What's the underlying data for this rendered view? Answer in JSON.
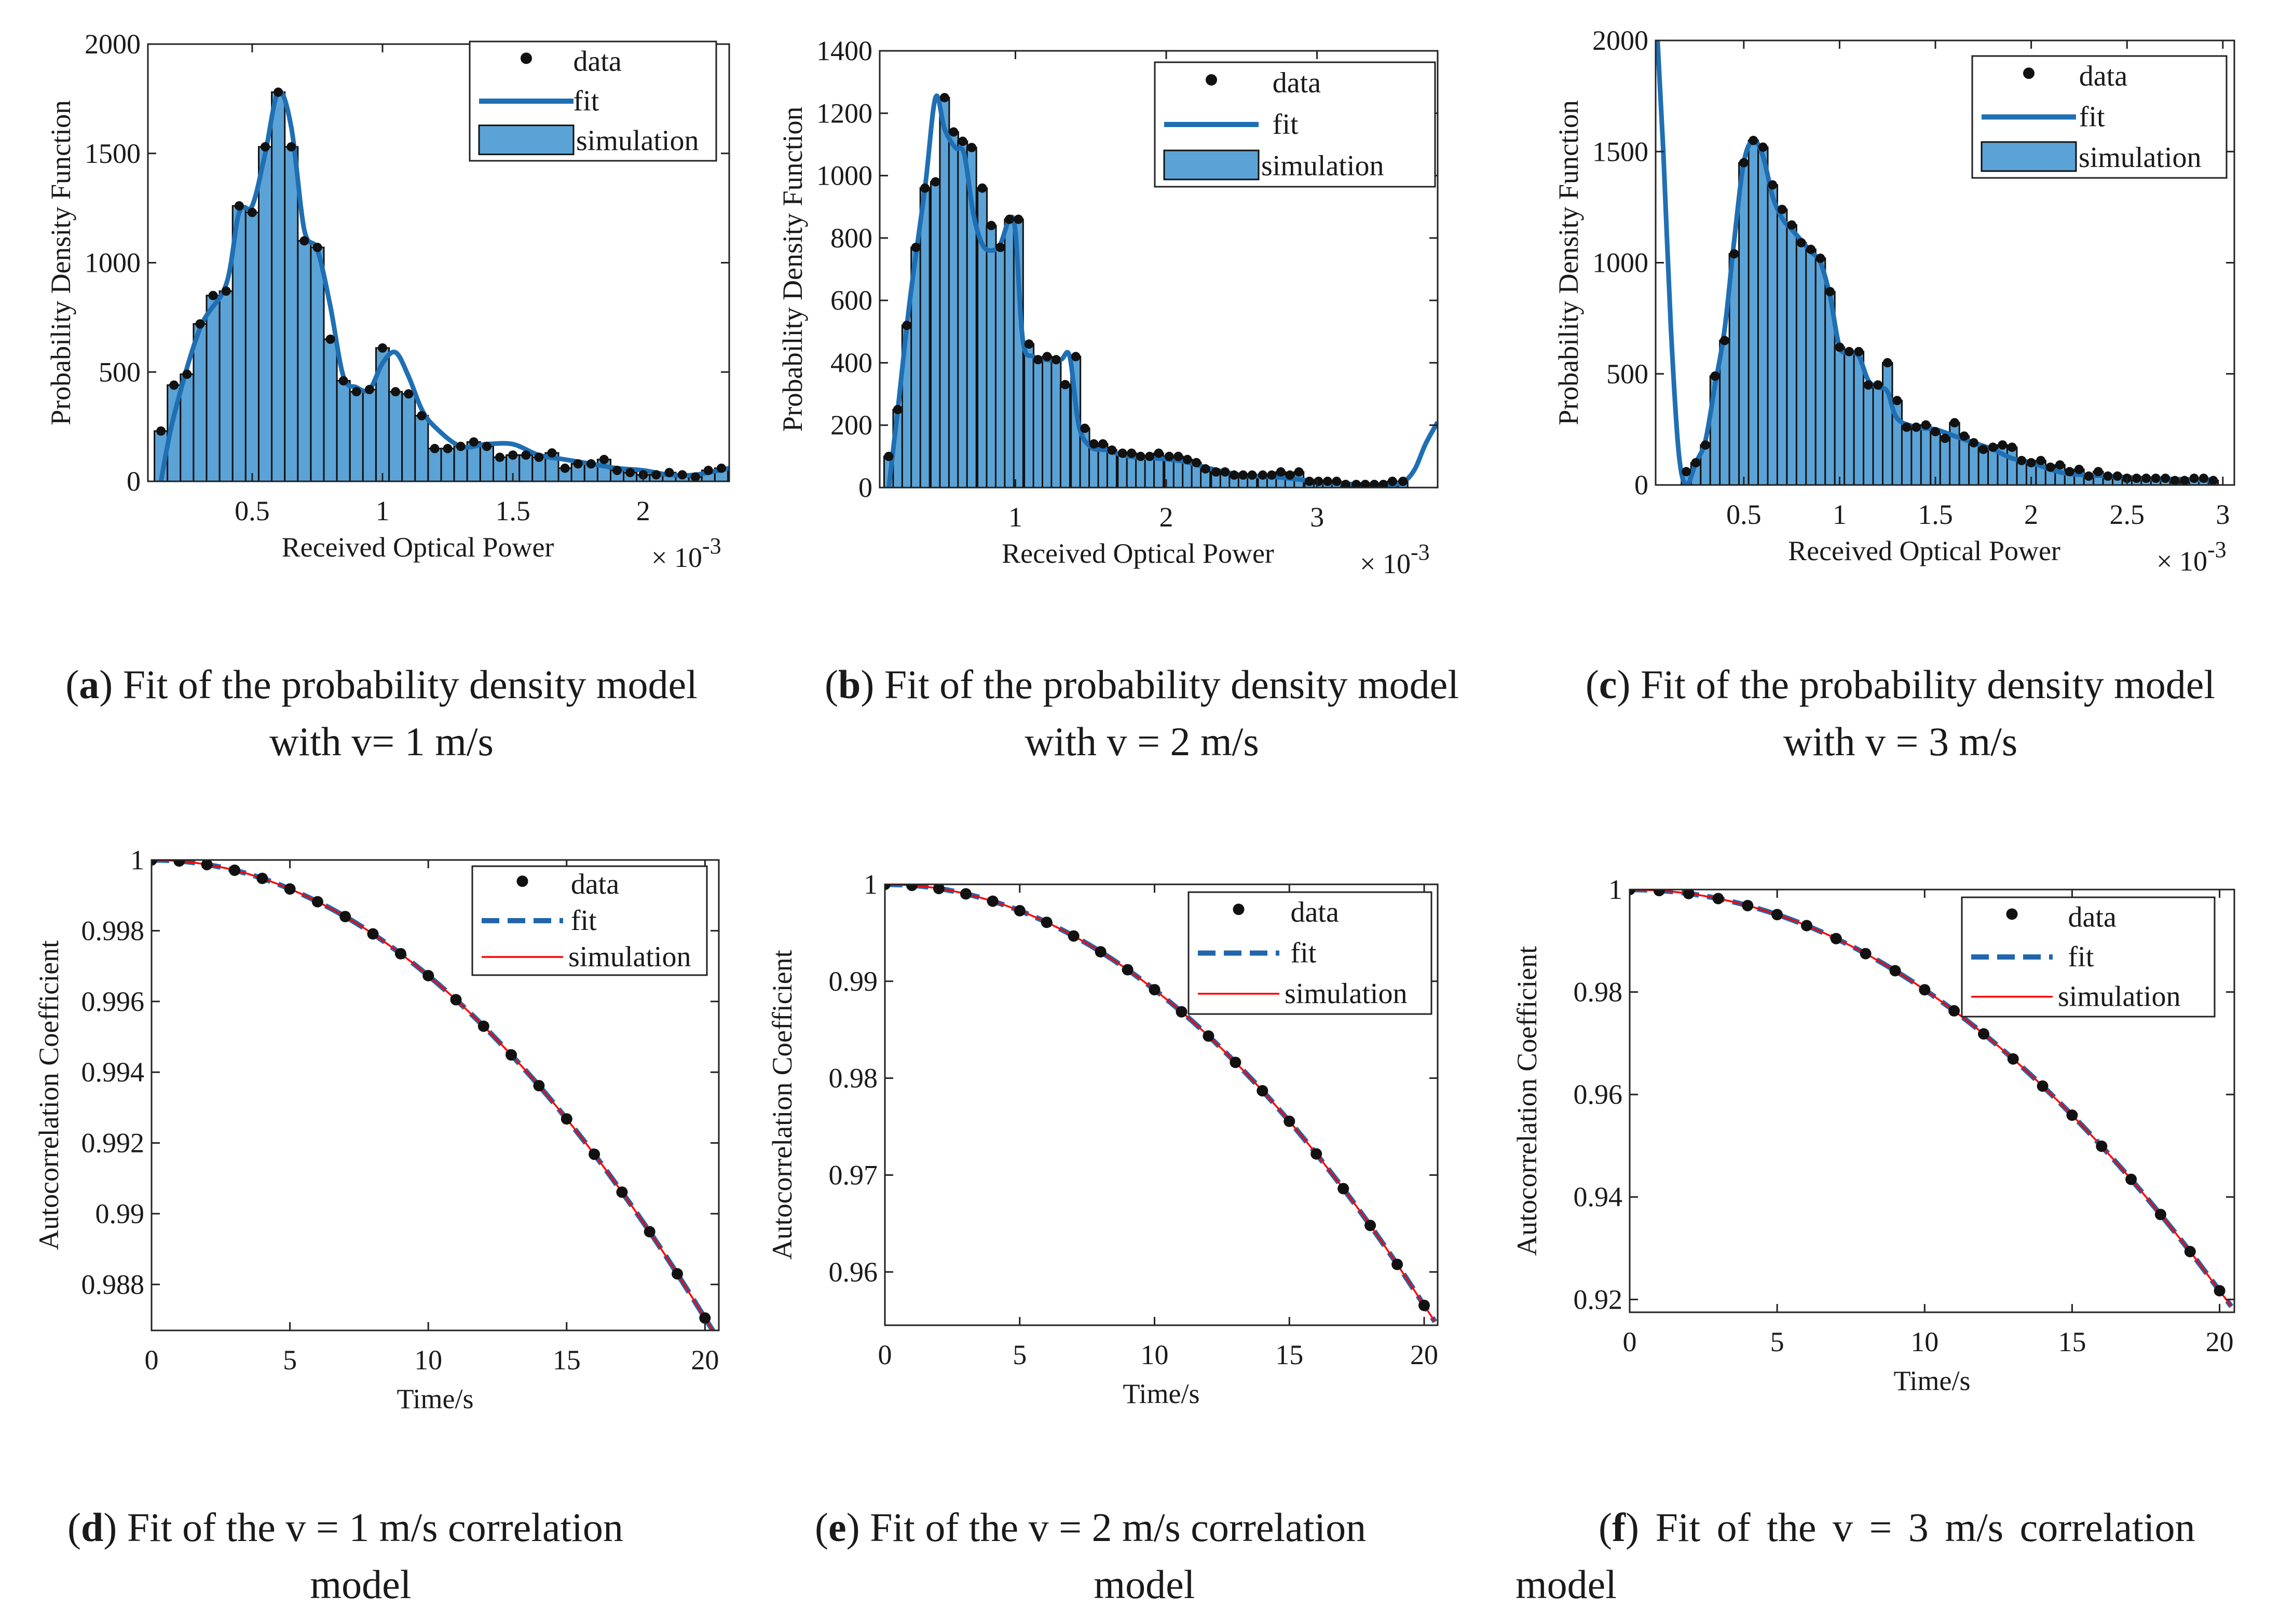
{
  "chart_data": [
    {
      "id": "a",
      "type": "bar",
      "kind": "pdf",
      "xlabel": "Received Optical Power",
      "ylabel": "Probability Density Function",
      "xscale_label": "× 10",
      "xscale_exp": "-3",
      "xlim": [
        0.1,
        2.33
      ],
      "ylim": [
        0,
        2000
      ],
      "xticks": [
        0.5,
        1,
        1.5,
        2
      ],
      "xtick_labels": [
        "0.5",
        "1",
        "1.5",
        "2"
      ],
      "yticks": [
        0,
        500,
        1000,
        1500,
        2000
      ],
      "ytick_labels": [
        "0",
        "500",
        "1000",
        "1500",
        "2000"
      ],
      "legend": [
        "data",
        "fit",
        "simulation"
      ],
      "legend_position": "top-right",
      "bin_width": 0.05,
      "x": [
        0.15,
        0.2,
        0.25,
        0.3,
        0.35,
        0.4,
        0.45,
        0.5,
        0.55,
        0.6,
        0.65,
        0.7,
        0.75,
        0.8,
        0.85,
        0.9,
        0.95,
        1.0,
        1.05,
        1.1,
        1.15,
        1.2,
        1.25,
        1.3,
        1.35,
        1.4,
        1.45,
        1.5,
        1.55,
        1.6,
        1.65,
        1.7,
        1.75,
        1.8,
        1.85,
        1.9,
        1.95,
        2.0,
        2.05,
        2.1,
        2.15,
        2.2,
        2.25,
        2.3
      ],
      "values": [
        230,
        440,
        490,
        720,
        850,
        870,
        1260,
        1230,
        1530,
        1780,
        1530,
        1100,
        1070,
        650,
        460,
        410,
        420,
        610,
        410,
        400,
        300,
        150,
        150,
        160,
        180,
        160,
        110,
        120,
        120,
        110,
        130,
        60,
        80,
        80,
        100,
        50,
        40,
        30,
        30,
        40,
        30,
        20,
        50,
        60
      ],
      "fit_x": [
        0.15,
        0.2,
        0.3,
        0.4,
        0.45,
        0.5,
        0.55,
        0.6,
        0.65,
        0.7,
        0.75,
        0.8,
        0.85,
        0.9,
        0.95,
        1.0,
        1.05,
        1.1,
        1.15,
        1.2,
        1.3,
        1.4,
        1.5,
        1.6,
        1.7,
        1.8,
        1.9,
        2.0,
        2.1,
        2.2,
        2.33
      ],
      "fit_y": [
        0,
        300,
        700,
        900,
        1230,
        1260,
        1500,
        1780,
        1620,
        1150,
        1060,
        800,
        480,
        430,
        420,
        540,
        590,
        480,
        330,
        250,
        160,
        170,
        170,
        120,
        100,
        80,
        60,
        50,
        30,
        30,
        60
      ]
    },
    {
      "id": "b",
      "type": "bar",
      "kind": "pdf",
      "xlabel": "Received Optical Power",
      "ylabel": "Probability Density Function",
      "xscale_label": "× 10",
      "xscale_exp": "-3",
      "xlim": [
        0.1,
        3.8
      ],
      "ylim": [
        0,
        1400
      ],
      "xticks": [
        1,
        2,
        3
      ],
      "xtick_labels": [
        "1",
        "2",
        "3"
      ],
      "yticks": [
        0,
        200,
        400,
        600,
        800,
        1000,
        1200,
        1400
      ],
      "ytick_labels": [
        "0",
        "200",
        "400",
        "600",
        "800",
        "1000",
        "1200",
        "1400"
      ],
      "legend": [
        "data",
        "fit",
        "simulation"
      ],
      "legend_position": "top-right",
      "bin_width": 0.062,
      "x": [
        0.16,
        0.22,
        0.28,
        0.34,
        0.4,
        0.47,
        0.53,
        0.59,
        0.65,
        0.71,
        0.78,
        0.84,
        0.9,
        0.96,
        1.02,
        1.09,
        1.15,
        1.21,
        1.27,
        1.33,
        1.4,
        1.46,
        1.52,
        1.58,
        1.64,
        1.71,
        1.77,
        1.83,
        1.89,
        1.95,
        2.02,
        2.08,
        2.14,
        2.2,
        2.26,
        2.33,
        2.39,
        2.45,
        2.51,
        2.57,
        2.64,
        2.7,
        2.76,
        2.82,
        2.88,
        2.95,
        3.01,
        3.07,
        3.13,
        3.19,
        3.26,
        3.32,
        3.38,
        3.44,
        3.5,
        3.57
      ],
      "values": [
        100,
        250,
        520,
        770,
        960,
        980,
        1250,
        1140,
        1110,
        1090,
        960,
        840,
        770,
        860,
        860,
        460,
        410,
        420,
        410,
        330,
        420,
        190,
        140,
        140,
        120,
        110,
        110,
        100,
        100,
        110,
        100,
        100,
        90,
        80,
        60,
        50,
        50,
        40,
        40,
        40,
        40,
        40,
        50,
        40,
        50,
        20,
        20,
        20,
        20,
        10,
        10,
        10,
        10,
        10,
        20,
        20
      ],
      "fit_x": [
        0.16,
        0.22,
        0.3,
        0.4,
        0.47,
        0.53,
        0.6,
        0.66,
        0.72,
        0.78,
        0.84,
        0.9,
        0.96,
        1.0,
        1.05,
        1.12,
        1.2,
        1.3,
        1.36,
        1.42,
        1.5,
        1.6,
        1.75,
        1.9,
        2.1,
        2.3,
        2.5,
        2.7,
        2.9,
        3.1,
        3.3,
        3.5,
        3.58,
        3.65,
        3.72,
        3.8
      ],
      "fit_y": [
        0,
        250,
        600,
        960,
        1250,
        1150,
        1090,
        1070,
        880,
        780,
        760,
        780,
        860,
        820,
        470,
        420,
        410,
        410,
        420,
        200,
        130,
        120,
        100,
        95,
        85,
        60,
        40,
        35,
        25,
        15,
        10,
        10,
        20,
        60,
        140,
        210
      ]
    },
    {
      "id": "c",
      "type": "bar",
      "kind": "pdf",
      "xlabel": "Received Optical Power",
      "ylabel": "Probability Density Function",
      "xscale_label": "× 10",
      "xscale_exp": "-3",
      "xlim": [
        0.04,
        3.06
      ],
      "ylim": [
        0,
        2000
      ],
      "xticks": [
        0.5,
        1,
        1.5,
        2,
        2.5,
        3
      ],
      "xtick_labels": [
        "0.5",
        "1",
        "1.5",
        "2",
        "2.5",
        "3"
      ],
      "yticks": [
        0,
        500,
        1000,
        1500,
        2000
      ],
      "ytick_labels": [
        "0",
        "500",
        "1000",
        "1500",
        "2000"
      ],
      "legend": [
        "data",
        "fit",
        "simulation"
      ],
      "legend_position": "top-right",
      "bin_width": 0.05,
      "x": [
        0.2,
        0.25,
        0.3,
        0.35,
        0.4,
        0.45,
        0.5,
        0.55,
        0.6,
        0.65,
        0.7,
        0.75,
        0.8,
        0.85,
        0.9,
        0.95,
        1.0,
        1.05,
        1.1,
        1.15,
        1.2,
        1.25,
        1.3,
        1.35,
        1.4,
        1.45,
        1.5,
        1.55,
        1.6,
        1.65,
        1.7,
        1.75,
        1.8,
        1.85,
        1.9,
        1.95,
        2.0,
        2.05,
        2.1,
        2.15,
        2.2,
        2.25,
        2.3,
        2.35,
        2.4,
        2.45,
        2.5,
        2.55,
        2.6,
        2.65,
        2.7,
        2.75,
        2.8,
        2.85,
        2.9,
        2.95
      ],
      "values": [
        60,
        100,
        180,
        490,
        650,
        1040,
        1450,
        1550,
        1520,
        1350,
        1240,
        1170,
        1090,
        1060,
        1020,
        870,
        620,
        600,
        600,
        450,
        450,
        550,
        380,
        260,
        260,
        270,
        240,
        210,
        280,
        220,
        190,
        160,
        170,
        180,
        170,
        110,
        100,
        110,
        80,
        90,
        60,
        70,
        40,
        60,
        40,
        40,
        30,
        30,
        30,
        30,
        30,
        20,
        20,
        30,
        30,
        20
      ],
      "fit_x": [
        0.05,
        0.08,
        0.12,
        0.16,
        0.2,
        0.25,
        0.3,
        0.35,
        0.4,
        0.45,
        0.5,
        0.55,
        0.6,
        0.65,
        0.7,
        0.75,
        0.8,
        0.85,
        0.9,
        0.95,
        1.0,
        1.05,
        1.1,
        1.15,
        1.2,
        1.25,
        1.3,
        1.4,
        1.5,
        1.6,
        1.7,
        1.8,
        1.9,
        2.0,
        2.1,
        2.2,
        2.4,
        2.6,
        2.8,
        2.95
      ],
      "fit_y": [
        2000,
        1500,
        700,
        150,
        0,
        100,
        200,
        450,
        700,
        1100,
        1450,
        1550,
        1480,
        1300,
        1200,
        1150,
        1100,
        1050,
        1000,
        850,
        620,
        600,
        580,
        470,
        440,
        420,
        300,
        260,
        250,
        220,
        190,
        160,
        120,
        100,
        70,
        50,
        40,
        30,
        25,
        20
      ]
    },
    {
      "id": "d",
      "type": "line",
      "kind": "acf",
      "xlabel": "Time/s",
      "ylabel": "Autocorrelation Coefficient",
      "xlim": [
        0,
        20.5
      ],
      "ylim": [
        0.9867,
        1.0
      ],
      "xticks": [
        0,
        5,
        10,
        15,
        20
      ],
      "xtick_labels": [
        "0",
        "5",
        "10",
        "15",
        "20"
      ],
      "yticks": [
        0.988,
        0.99,
        0.992,
        0.994,
        0.996,
        0.998,
        1
      ],
      "ytick_labels": [
        "0.988",
        "0.99",
        "0.992",
        "0.994",
        "0.996",
        "0.998",
        "1"
      ],
      "legend": [
        "data",
        "fit",
        "simulation"
      ],
      "legend_position": "top-right",
      "x": [
        0,
        1,
        2,
        3,
        4,
        5,
        6,
        7,
        8,
        9,
        10,
        11,
        12,
        13,
        14,
        15,
        16,
        17,
        18,
        19,
        20
      ],
      "values": [
        1.0,
        0.99997,
        0.99987,
        0.99971,
        0.99948,
        0.99918,
        0.99882,
        0.9984,
        0.99791,
        0.99735,
        0.99673,
        0.99605,
        0.9953,
        0.99449,
        0.99362,
        0.99268,
        0.99168,
        0.99061,
        0.98949,
        0.9883,
        0.98705
      ]
    },
    {
      "id": "e",
      "type": "line",
      "kind": "acf",
      "xlabel": "Time/s",
      "ylabel": "Autocorrelation Coefficient",
      "xlim": [
        0,
        20.5
      ],
      "ylim": [
        0.9545,
        1.0
      ],
      "xticks": [
        0,
        5,
        10,
        15,
        20
      ],
      "xtick_labels": [
        "0",
        "5",
        "10",
        "15",
        "20"
      ],
      "yticks": [
        0.96,
        0.97,
        0.98,
        0.99,
        1
      ],
      "ytick_labels": [
        "0.96",
        "0.97",
        "0.98",
        "0.99",
        "1"
      ],
      "legend": [
        "data",
        "fit",
        "simulation"
      ],
      "legend_position": "top-right",
      "x": [
        0,
        1,
        2,
        3,
        4,
        5,
        6,
        7,
        8,
        9,
        10,
        11,
        12,
        13,
        14,
        15,
        16,
        17,
        18,
        19,
        20
      ],
      "values": [
        1.0,
        0.9999,
        0.99957,
        0.99902,
        0.99826,
        0.99728,
        0.99608,
        0.99467,
        0.99304,
        0.99119,
        0.98913,
        0.98685,
        0.98435,
        0.98163,
        0.9787,
        0.97555,
        0.97218,
        0.9686,
        0.9648,
        0.96078,
        0.95655
      ]
    },
    {
      "id": "f",
      "type": "line",
      "kind": "acf",
      "xlabel": "Time/s",
      "ylabel": "Autocorrelation Coefficient",
      "xlim": [
        0,
        20.5
      ],
      "ylim": [
        0.9175,
        1.0
      ],
      "xticks": [
        0,
        5,
        10,
        15,
        20
      ],
      "xtick_labels": [
        "0",
        "5",
        "10",
        "15",
        "20"
      ],
      "yticks": [
        0.92,
        0.94,
        0.96,
        0.98,
        1
      ],
      "ytick_labels": [
        "0.92",
        "0.94",
        "0.96",
        "0.98",
        "1"
      ],
      "legend": [
        "data",
        "fit",
        "simulation"
      ],
      "legend_position": "top-right",
      "x": [
        0,
        1,
        2,
        3,
        4,
        5,
        6,
        7,
        8,
        9,
        10,
        11,
        12,
        13,
        14,
        15,
        16,
        17,
        18,
        19,
        20
      ],
      "values": [
        1.0,
        0.9998,
        0.99922,
        0.99824,
        0.99687,
        0.99511,
        0.99296,
        0.99042,
        0.98749,
        0.98416,
        0.98044,
        0.97633,
        0.97183,
        0.96694,
        0.96165,
        0.95597,
        0.9499,
        0.94344,
        0.93658,
        0.92934,
        0.9217
      ]
    }
  ],
  "captions": {
    "a": {
      "letter": "a",
      "line1": " Fit of the probability density model",
      "line2": "with v= 1 m/s"
    },
    "b": {
      "letter": "b",
      "line1": " Fit of the probability density model",
      "line2": "with v = 2 m/s"
    },
    "c": {
      "letter": "c",
      "line1": " Fit of the probability density model",
      "line2": "with v = 3 m/s"
    },
    "d": {
      "letter": "d",
      "line1": " Fit of the v = 1 m/s correlation",
      "line2": "model"
    },
    "e": {
      "letter": "e",
      "line1": " Fit of the v = 2 m/s correlation",
      "line2": "model"
    },
    "f": {
      "letter": "f",
      "line1": " Fit of the v = 3 m/s correlation",
      "line2": "model"
    }
  },
  "colors": {
    "bar_fill": "#5ba3d6",
    "bar_edge": "#111111",
    "fit_line": "#1f6fb4",
    "acf_fit": "#2166ac",
    "simulation_line": "#ff0000",
    "data_marker": "#111111",
    "axis": "#222222"
  }
}
